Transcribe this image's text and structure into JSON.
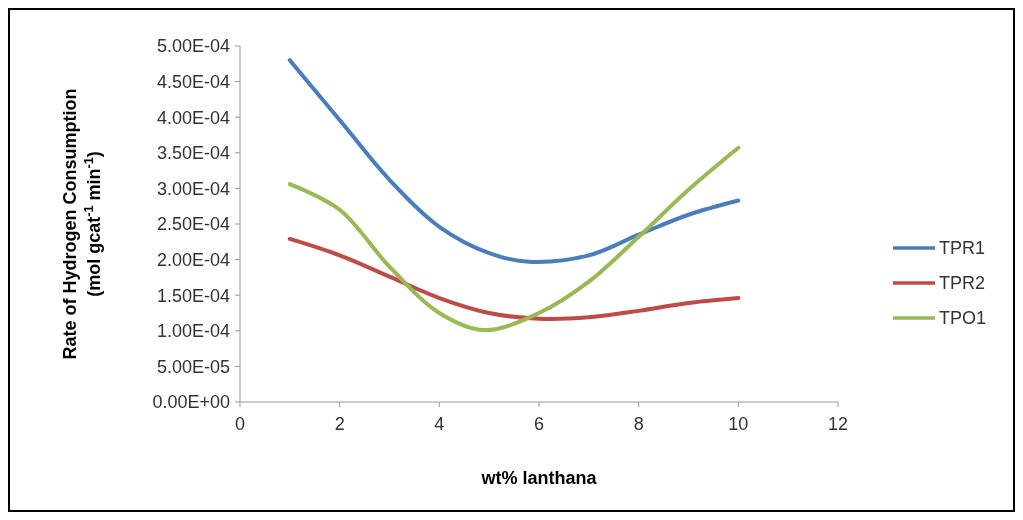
{
  "chart_data": {
    "type": "line",
    "xlabel": "wt% lanthana",
    "ylabel": "Rate of Hydrogen Consumption\n(mol gcat$^{-1}$ min$^{-1}$)",
    "xlim": [
      0,
      12
    ],
    "xticks": [
      0,
      2,
      4,
      6,
      8,
      10,
      12
    ],
    "ylim": [
      0,
      0.0005
    ],
    "yticks": [
      {
        "value": 0,
        "label": "0.00E+00"
      },
      {
        "value": 5e-05,
        "label": "5.00E-05"
      },
      {
        "value": 0.0001,
        "label": "1.00E-04"
      },
      {
        "value": 0.00015,
        "label": "1.50E-04"
      },
      {
        "value": 0.0002,
        "label": "2.00E-04"
      },
      {
        "value": 0.00025,
        "label": "2.50E-04"
      },
      {
        "value": 0.0003,
        "label": "3.00E-04"
      },
      {
        "value": 0.00035,
        "label": "3.50E-04"
      },
      {
        "value": 0.0004,
        "label": "4.00E-04"
      },
      {
        "value": 0.00045,
        "label": "4.50E-04"
      },
      {
        "value": 0.0005,
        "label": "5.00E-04"
      }
    ],
    "grid": false,
    "legend": "right",
    "marker": "none",
    "line_style": "solid",
    "series": [
      {
        "name": "TPR1",
        "color": "#4a7ebb",
        "x": [
          1,
          2,
          3,
          4,
          5,
          5.8,
          7,
          8,
          9,
          10
        ],
        "values": [
          0.00048,
          0.000396,
          0.000312,
          0.000246,
          0.000209,
          0.000197,
          0.000206,
          0.000235,
          0.000263,
          0.000283
        ]
      },
      {
        "name": "TPR2",
        "color": "#be4b48",
        "x": [
          1,
          2,
          3,
          4,
          5,
          6,
          7,
          8,
          9,
          10
        ],
        "values": [
          0.000229,
          0.000206,
          0.000176,
          0.000146,
          0.000125,
          0.000117,
          0.000119,
          0.000128,
          0.000139,
          0.000146
        ]
      },
      {
        "name": "TPO1",
        "color": "#98b954",
        "x": [
          1,
          2,
          3,
          4,
          4.9,
          6,
          7,
          8,
          9,
          10
        ],
        "values": [
          0.000306,
          0.00027,
          0.00019,
          0.000125,
          0.000101,
          0.000125,
          0.000169,
          0.000232,
          0.000298,
          0.000357
        ]
      }
    ]
  }
}
